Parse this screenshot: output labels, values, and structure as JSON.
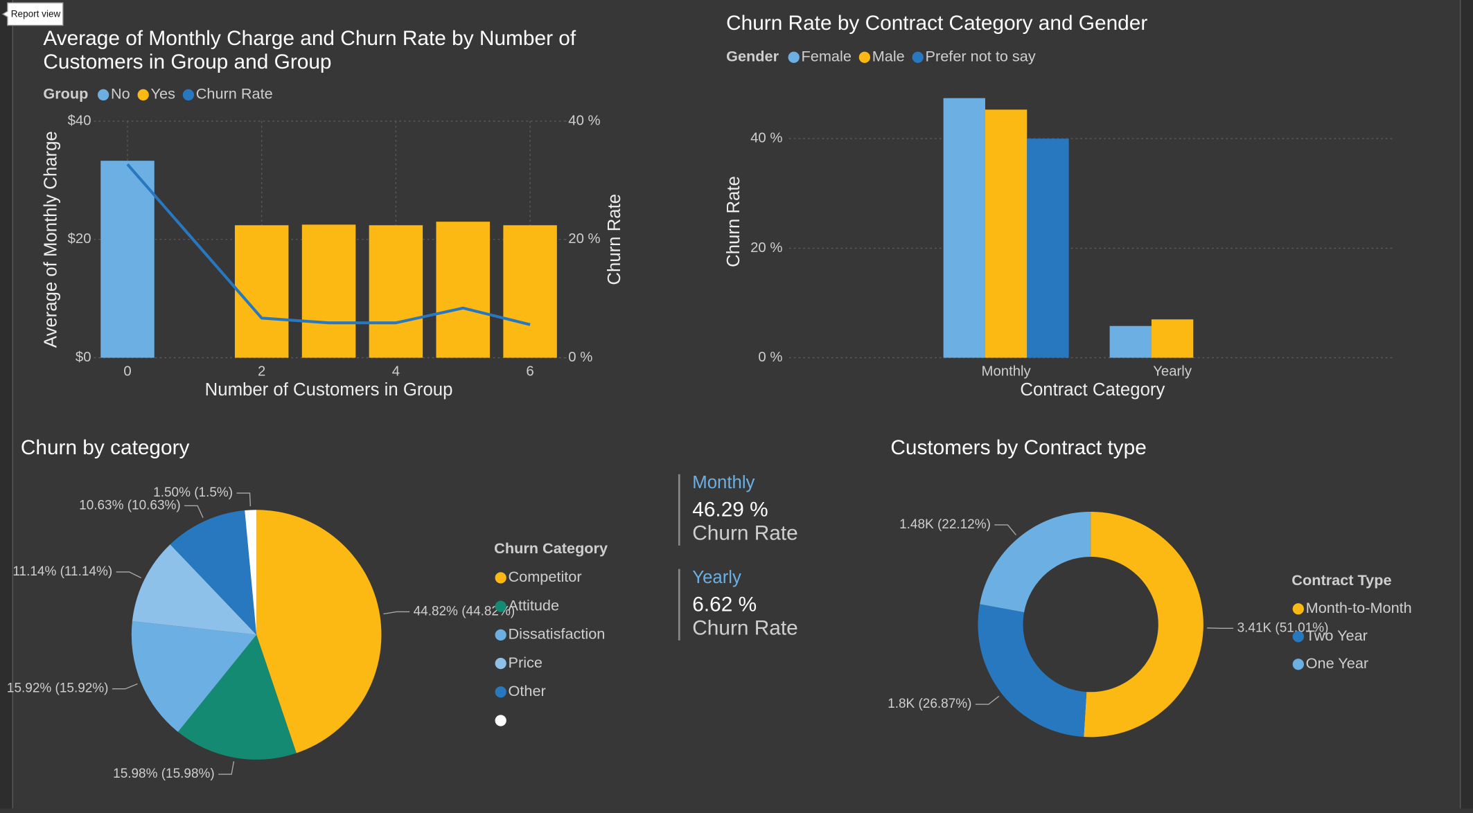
{
  "report_view_label": "Report view",
  "chart_data": [
    {
      "type": "combo",
      "title": "Average of Monthly Charge and Churn Rate by Number of Customers in Group and Group",
      "legend_title": "Group",
      "x_label": "Number of Customers in Group",
      "y_label": "Average of Monthly Charge",
      "y2_label": "Churn Rate",
      "x": [
        0,
        2,
        3,
        4,
        5,
        6
      ],
      "series": [
        {
          "name": "No",
          "type": "bar",
          "color": "#6cb0e3",
          "values": [
            33.3,
            null,
            null,
            null,
            null,
            null
          ]
        },
        {
          "name": "Yes",
          "type": "bar",
          "color": "#fcb813",
          "values": [
            null,
            22.4,
            22.5,
            22.4,
            23.0,
            22.4
          ]
        },
        {
          "name": "Churn Rate",
          "type": "line",
          "axis": "y2",
          "color": "#2878c0",
          "values": [
            32.7,
            6.7,
            5.9,
            5.9,
            8.4,
            5.6
          ]
        }
      ],
      "xlim": [
        -0.5,
        6.5
      ],
      "xticks": [
        0,
        2,
        4,
        6
      ],
      "ylim": [
        0,
        40
      ],
      "yticks": [
        {
          "value": 0,
          "label": "$0"
        },
        {
          "value": 20,
          "label": "$20"
        },
        {
          "value": 40,
          "label": "$40"
        }
      ],
      "y2lim": [
        0,
        40
      ],
      "y2ticks": [
        {
          "value": 0,
          "label": "0 %"
        },
        {
          "value": 20,
          "label": "20 %"
        },
        {
          "value": 40,
          "label": "40 %"
        }
      ],
      "grid": true,
      "legend": "top-left"
    },
    {
      "type": "bar",
      "title": "Churn Rate by Contract Category and Gender",
      "legend_title": "Gender",
      "x_label": "Contract Category",
      "y_label": "Churn Rate",
      "categories": [
        "Monthly",
        "Yearly"
      ],
      "series": [
        {
          "name": "Female",
          "color": "#6cb0e3",
          "values": [
            47.4,
            5.8
          ]
        },
        {
          "name": "Male",
          "color": "#fcb813",
          "values": [
            45.3,
            7.0
          ]
        },
        {
          "name": "Prefer not to say",
          "color": "#2878c0",
          "values": [
            40.0,
            null
          ]
        }
      ],
      "ylim": [
        0,
        48
      ],
      "yticks": [
        {
          "value": 0,
          "label": "0 %"
        },
        {
          "value": 20,
          "label": "20 %"
        },
        {
          "value": 40,
          "label": "40 %"
        }
      ],
      "grid": true,
      "legend": "top-left"
    },
    {
      "type": "pie",
      "title": "Churn by category",
      "legend_title": "Churn Category",
      "categories": [
        "Competitor",
        "Attitude",
        "Dissatisfaction",
        "Price",
        "Other",
        null
      ],
      "values": [
        44.82,
        15.98,
        15.92,
        11.14,
        10.63,
        1.5
      ],
      "value_labels": [
        "44.82% (44.82%)",
        "15.98% (15.98%)",
        "15.92% (15.92%)",
        "11.14% (11.14%)",
        "10.63% (10.63%)",
        "1.50% (1.5%)"
      ],
      "colors": [
        "#fcb813",
        "#148a72",
        "#6cb0e3",
        "#8ec1ea",
        "#2878c0",
        "#ffffff"
      ],
      "legend": "right"
    },
    {
      "type": "donut",
      "title": "Customers by Contract type",
      "legend_title": "Contract Type",
      "categories": [
        "Month-to-Month",
        "Two Year",
        "One Year"
      ],
      "values": [
        3410,
        1800,
        1480
      ],
      "value_labels": [
        "3.41K (51.01%)",
        "1.8K (26.87%)",
        "1.48K (22.12%)"
      ],
      "colors": [
        "#fcb813",
        "#2878c0",
        "#6cb0e3"
      ],
      "legend": "right"
    }
  ],
  "cards": [
    {
      "title": "Monthly",
      "value": "46.29 %",
      "label": "Churn Rate"
    },
    {
      "title": "Yearly",
      "value": "6.62 %",
      "label": "Churn Rate"
    }
  ]
}
